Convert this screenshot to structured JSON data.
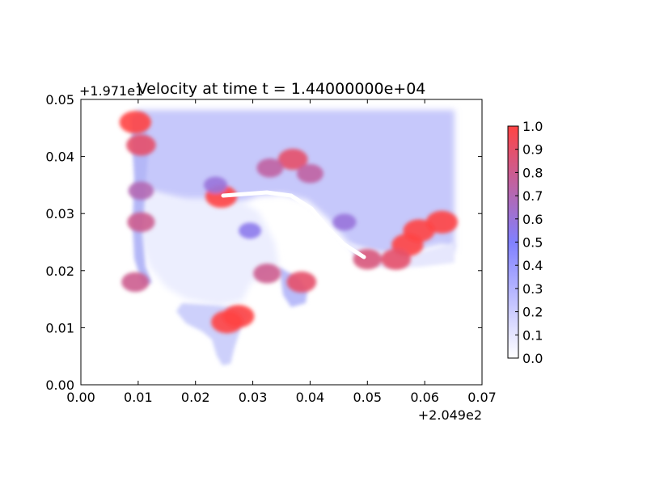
{
  "chart_data": {
    "type": "heatmap",
    "title": "Velocity at time t = 1.44000000e+04",
    "xlabel": "",
    "ylabel": "",
    "xlim": [
      0.0,
      0.07
    ],
    "ylim": [
      0.0,
      0.05
    ],
    "x_ticks": [
      "0.00",
      "0.01",
      "0.02",
      "0.03",
      "0.04",
      "0.05",
      "0.06",
      "0.07"
    ],
    "y_ticks": [
      "0.00",
      "0.01",
      "0.02",
      "0.03",
      "0.04",
      "0.05"
    ],
    "x_offset": "+2.049e2",
    "y_offset": "+1.971e1",
    "grid": false,
    "colorbar": {
      "range": [
        0.0,
        1.0
      ],
      "ticks": [
        "0.0",
        "0.1",
        "0.2",
        "0.3",
        "0.4",
        "0.5",
        "0.6",
        "0.7",
        "0.8",
        "0.9",
        "1.0"
      ],
      "colors": [
        "#ffffff",
        "#8080ff",
        "#ff4444"
      ]
    },
    "features": [
      {
        "x": 0.0255,
        "y": 0.011,
        "value": 1.0
      },
      {
        "x": 0.0275,
        "y": 0.012,
        "value": 1.0
      },
      {
        "x": 0.0245,
        "y": 0.033,
        "value": 1.0
      },
      {
        "x": 0.037,
        "y": 0.0395,
        "value": 0.9
      },
      {
        "x": 0.033,
        "y": 0.038,
        "value": 0.75
      },
      {
        "x": 0.04,
        "y": 0.037,
        "value": 0.75
      },
      {
        "x": 0.063,
        "y": 0.0285,
        "value": 1.0
      },
      {
        "x": 0.059,
        "y": 0.027,
        "value": 1.0
      },
      {
        "x": 0.057,
        "y": 0.0245,
        "value": 1.0
      },
      {
        "x": 0.055,
        "y": 0.022,
        "value": 0.9
      },
      {
        "x": 0.05,
        "y": 0.022,
        "value": 0.85
      },
      {
        "x": 0.0385,
        "y": 0.018,
        "value": 0.9
      },
      {
        "x": 0.0325,
        "y": 0.0195,
        "value": 0.8
      },
      {
        "x": 0.0105,
        "y": 0.042,
        "value": 0.9
      },
      {
        "x": 0.0105,
        "y": 0.0285,
        "value": 0.8
      },
      {
        "x": 0.0105,
        "y": 0.034,
        "value": 0.7
      },
      {
        "x": 0.0095,
        "y": 0.046,
        "value": 1.0
      },
      {
        "x": 0.0095,
        "y": 0.018,
        "value": 0.8
      },
      {
        "x": 0.0235,
        "y": 0.035,
        "value": 0.6
      },
      {
        "x": 0.0295,
        "y": 0.027,
        "value": 0.55
      },
      {
        "x": 0.046,
        "y": 0.0285,
        "value": 0.6
      }
    ]
  }
}
